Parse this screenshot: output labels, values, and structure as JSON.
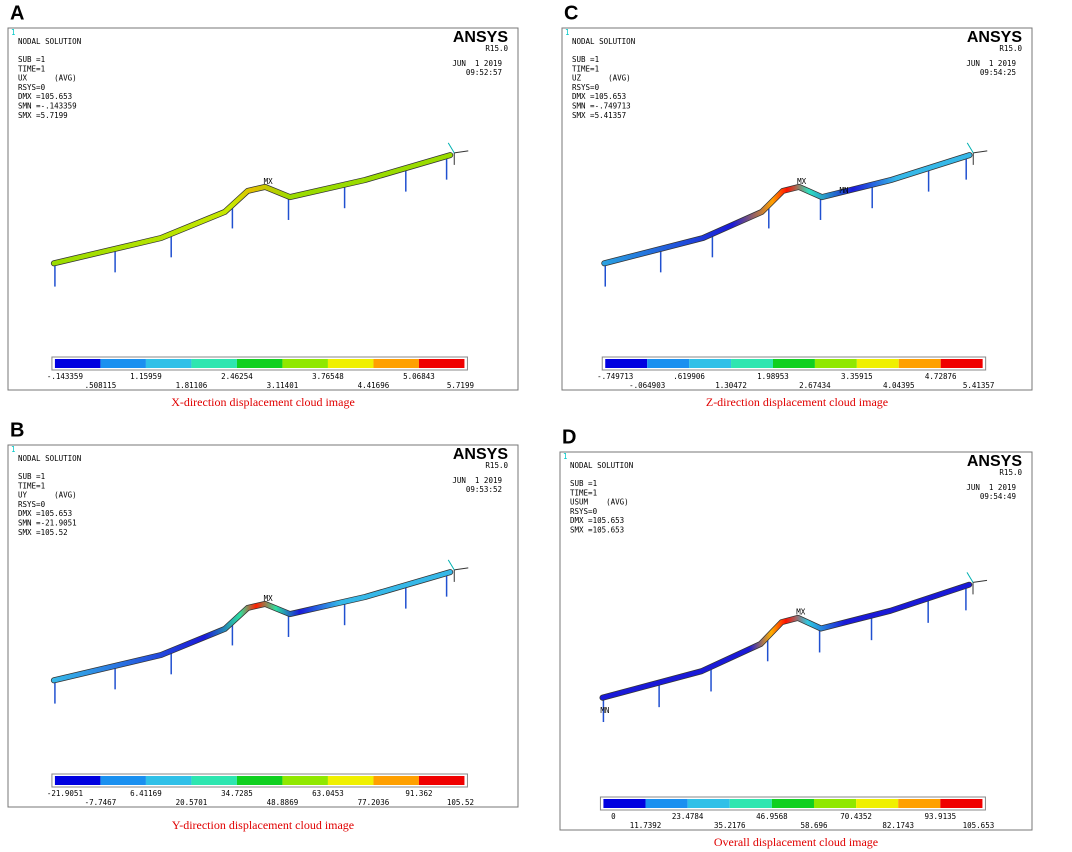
{
  "panels": [
    {
      "letter": "A",
      "window": "1",
      "header": [
        "NODAL SOLUTION",
        "SUB =1",
        "TIME=1",
        "UX      (AVG)",
        "RSYS=0",
        "DMX =105.653",
        "SMN =-.143359",
        "SMX =5.7199"
      ],
      "brand": "ANSYS",
      "version": "R15.0",
      "date": "JUN  1 2019",
      "time": "09:52:57",
      "labels": [
        "MX"
      ],
      "legend": [
        "-.143359",
        ".508115",
        "1.15959",
        "1.81106",
        "2.46254",
        "3.11401",
        "3.76548",
        "4.41696",
        "5.06843",
        "5.7199"
      ],
      "caption": "X-direction displacement cloud image"
    },
    {
      "letter": "B",
      "window": "1",
      "header": [
        "NODAL SOLUTION",
        "SUB =1",
        "TIME=1",
        "UY      (AVG)",
        "RSYS=0",
        "DMX =105.653",
        "SMN =-21.9051",
        "SMX =105.52"
      ],
      "brand": "ANSYS",
      "version": "R15.0",
      "date": "JUN  1 2019",
      "time": "09:53:52",
      "labels": [
        "MX"
      ],
      "legend": [
        "-21.9051",
        "-7.7467",
        "6.41169",
        "20.5701",
        "34.7285",
        "48.8869",
        "63.0453",
        "77.2036",
        "91.362",
        "105.52"
      ],
      "caption": "Y-direction displacement cloud image"
    },
    {
      "letter": "C",
      "window": "1",
      "header": [
        "NODAL SOLUTION",
        "SUB =1",
        "TIME=1",
        "UZ      (AVG)",
        "RSYS=0",
        "DMX =105.653",
        "SMN =-.749713",
        "SMX =5.41357"
      ],
      "brand": "ANSYS",
      "version": "R15.0",
      "date": "JUN  1 2019",
      "time": "09:54:25",
      "labels": [
        "MX",
        "MN"
      ],
      "legend": [
        "-.749713",
        "-.064903",
        ".619906",
        "1.30472",
        "1.98953",
        "2.67434",
        "3.35915",
        "4.04395",
        "4.72876",
        "5.41357"
      ],
      "caption": "Z-direction displacement cloud image"
    },
    {
      "letter": "D",
      "window": "1",
      "header": [
        "NODAL SOLUTION",
        "SUB =1",
        "TIME=1",
        "USUM    (AVG)",
        "RSYS=0",
        "DMX =105.653",
        "SMX =105.653"
      ],
      "brand": "ANSYS",
      "version": "R15.0",
      "date": "JUN  1 2019",
      "time": "09:54:49",
      "labels": [
        "MX",
        "MN"
      ],
      "legend": [
        "0",
        "11.7392",
        "23.4784",
        "35.2176",
        "46.9568",
        "58.696",
        "70.4352",
        "82.1743",
        "93.9135",
        "105.653"
      ],
      "caption": "Overall displacement cloud image"
    }
  ]
}
